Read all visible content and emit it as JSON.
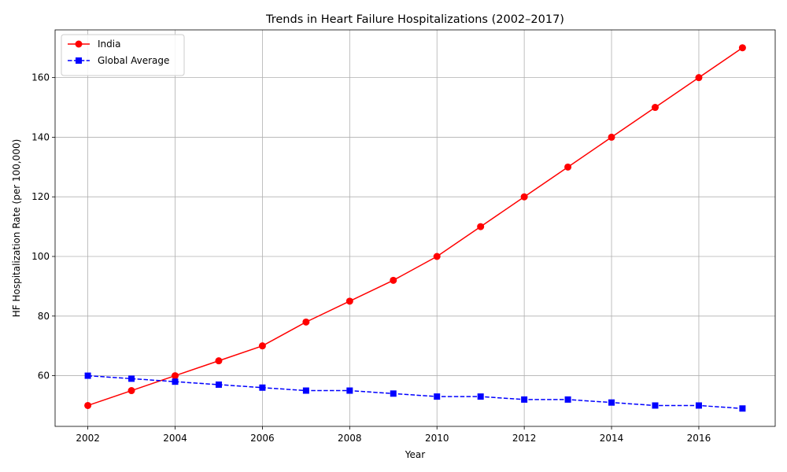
{
  "chart_data": {
    "type": "line",
    "title": "Trends in Heart Failure Hospitalizations (2002–2017)",
    "xlabel": "Year",
    "ylabel": "HF Hospitalization Rate (per 100,000)",
    "x": [
      2002,
      2003,
      2004,
      2005,
      2006,
      2007,
      2008,
      2009,
      2010,
      2011,
      2012,
      2013,
      2014,
      2015,
      2016,
      2017
    ],
    "xlim": [
      2001.25,
      2017.75
    ],
    "ylim": [
      43,
      176
    ],
    "xticks": [
      2002,
      2004,
      2006,
      2008,
      2010,
      2012,
      2014,
      2016
    ],
    "yticks": [
      60,
      80,
      100,
      120,
      140,
      160
    ],
    "grid": true,
    "legend_position": "top-left",
    "series": [
      {
        "name": "India",
        "color": "#ff0000",
        "linestyle": "solid",
        "marker": "circle",
        "values": [
          50,
          55,
          60,
          65,
          70,
          78,
          85,
          92,
          100,
          110,
          120,
          130,
          140,
          150,
          160,
          170
        ]
      },
      {
        "name": "Global Average",
        "color": "#0000ff",
        "linestyle": "dashed",
        "marker": "square",
        "values": [
          60,
          59,
          58,
          57,
          56,
          55,
          55,
          54,
          53,
          53,
          52,
          52,
          51,
          50,
          50,
          49
        ]
      }
    ]
  }
}
